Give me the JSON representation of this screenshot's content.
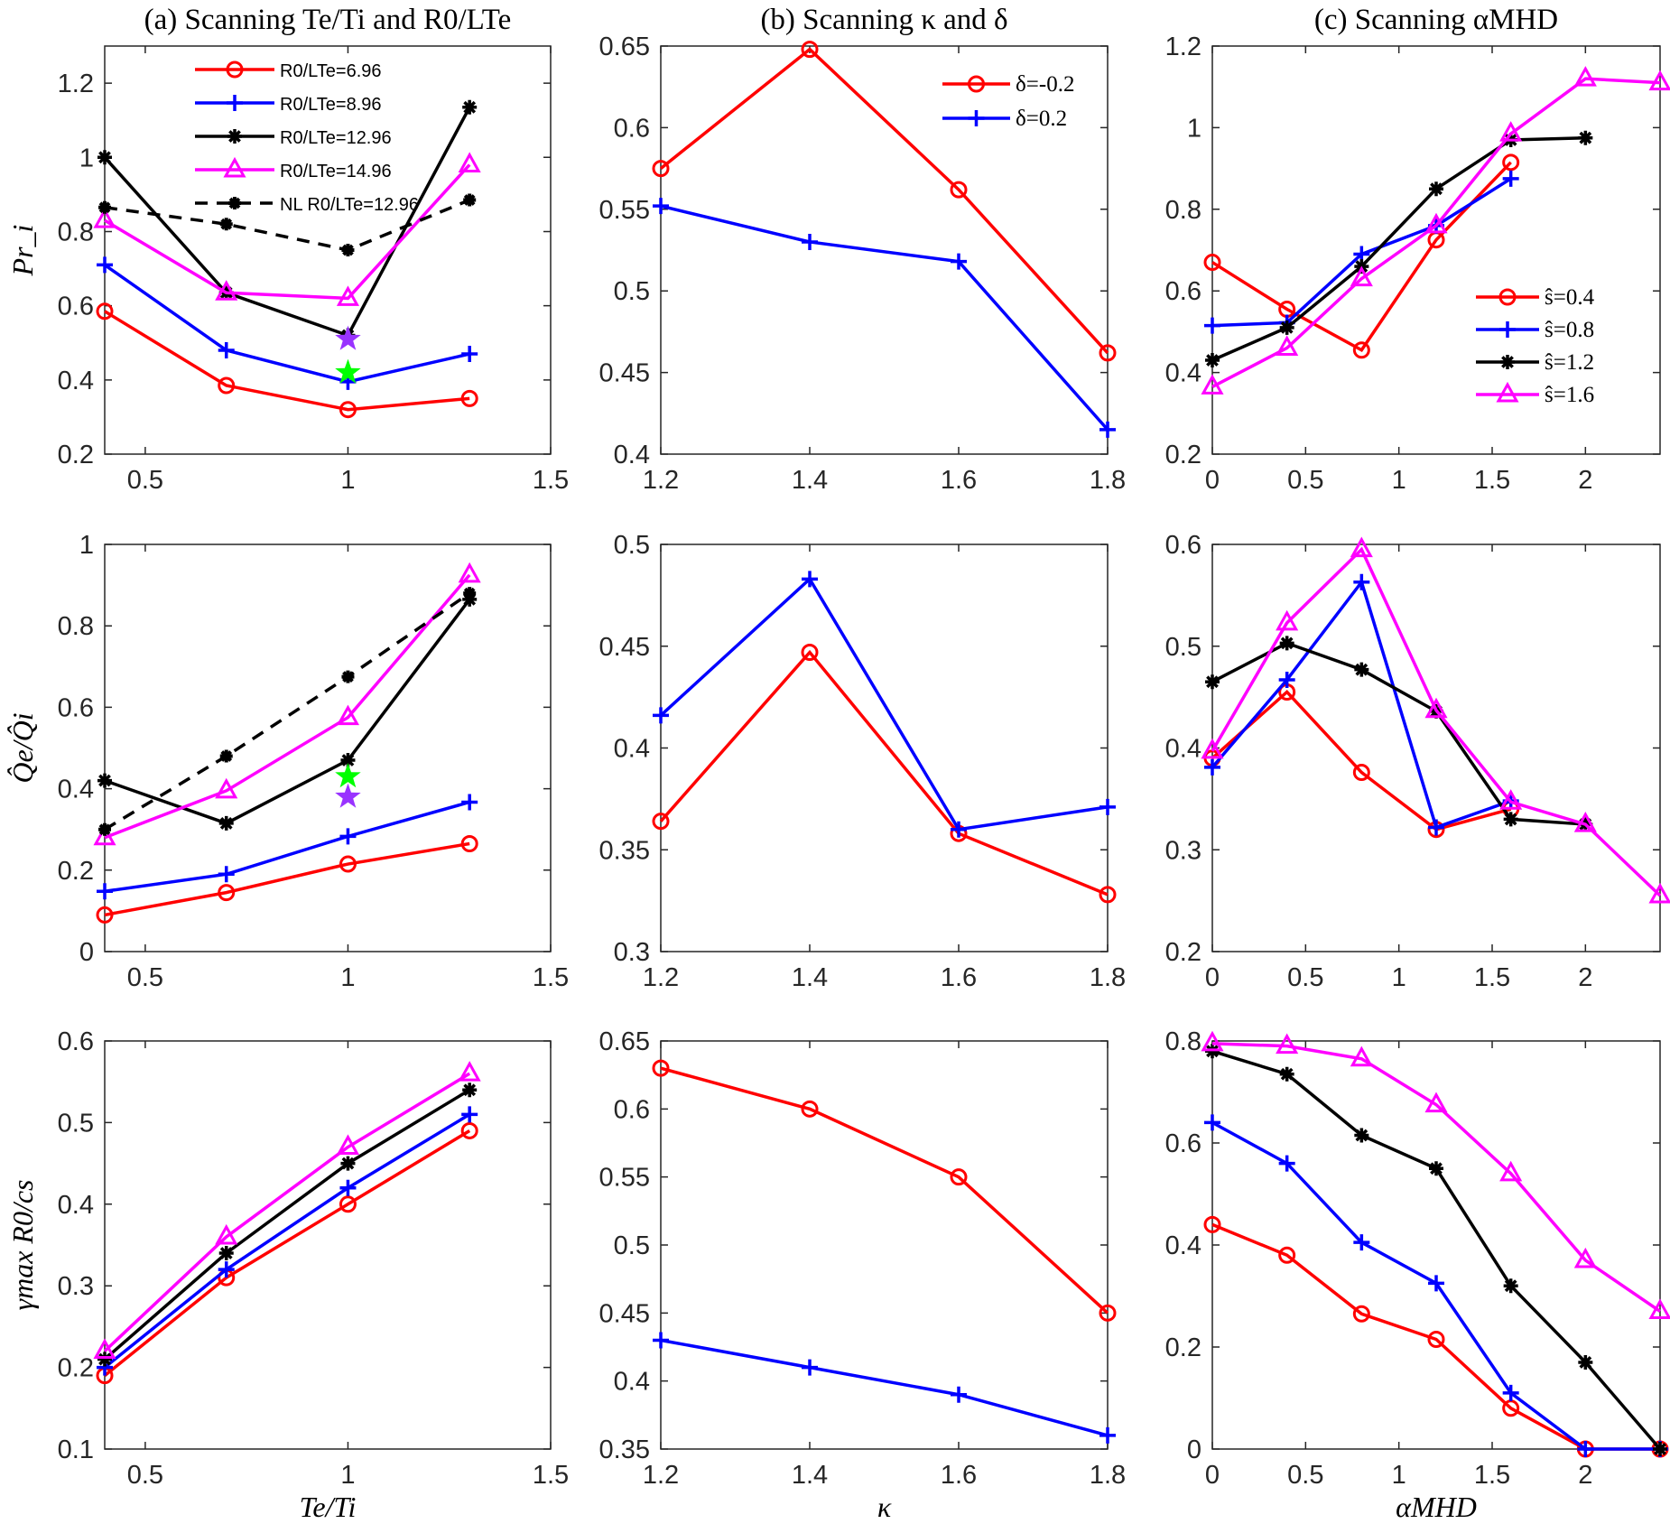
{
  "colors": {
    "red": "#ff0000",
    "blue": "#0000ff",
    "black": "#000000",
    "magenta": "#ff00ff",
    "purple_star": "#9933ff",
    "green_star": "#00ff00"
  },
  "chart_data": [
    {
      "id": "a1",
      "type": "line",
      "title": "(a) Scanning Te/Ti and R0/LTe",
      "ylabel": "Pr_i",
      "xlabel": "",
      "xlim": [
        0.4,
        1.5
      ],
      "ylim": [
        0.2,
        1.3
      ],
      "xticks": [
        0.5,
        1,
        1.5
      ],
      "yticks": [
        0.2,
        0.4,
        0.6,
        0.8,
        1,
        1.2
      ],
      "legend": "top-center",
      "series": [
        {
          "name": "R0/LTe=6.96",
          "color": "red",
          "marker": "circle",
          "x": [
            0.4,
            0.7,
            1.0,
            1.3
          ],
          "y": [
            0.585,
            0.385,
            0.32,
            0.35
          ]
        },
        {
          "name": "R0/LTe=8.96",
          "color": "blue",
          "marker": "plus",
          "x": [
            0.4,
            0.7,
            1.0,
            1.3
          ],
          "y": [
            0.71,
            0.48,
            0.395,
            0.47
          ]
        },
        {
          "name": "R0/LTe=12.96",
          "color": "black",
          "marker": "asterisk",
          "x": [
            0.4,
            0.7,
            1.0,
            1.3
          ],
          "y": [
            1.0,
            0.635,
            0.52,
            1.135
          ]
        },
        {
          "name": "R0/LTe=14.96",
          "color": "magenta",
          "marker": "triangle",
          "x": [
            0.4,
            0.7,
            1.0,
            1.3
          ],
          "y": [
            0.83,
            0.635,
            0.62,
            0.98
          ]
        },
        {
          "name": "NL R0/LTe=12.96",
          "color": "black",
          "marker": "dot",
          "dashed": true,
          "x": [
            0.4,
            0.7,
            1.0,
            1.3
          ],
          "y": [
            0.865,
            0.82,
            0.75,
            0.885
          ]
        }
      ],
      "stars": [
        {
          "x": 1.0,
          "y": 0.51,
          "color": "purple_star"
        },
        {
          "x": 1.0,
          "y": 0.42,
          "color": "green_star"
        }
      ]
    },
    {
      "id": "b1",
      "type": "line",
      "title": "(b) Scanning κ and δ",
      "xlabel": "",
      "ylabel": "",
      "xlim": [
        1.2,
        1.8
      ],
      "ylim": [
        0.4,
        0.65
      ],
      "xticks": [
        1.2,
        1.4,
        1.6,
        1.8
      ],
      "yticks": [
        0.4,
        0.45,
        0.5,
        0.55,
        0.6,
        0.65
      ],
      "legend": "top-right",
      "series": [
        {
          "name": "δ=-0.2",
          "color": "red",
          "marker": "circle",
          "x": [
            1.2,
            1.4,
            1.6,
            1.8
          ],
          "y": [
            0.575,
            0.648,
            0.562,
            0.462
          ]
        },
        {
          "name": "δ=0.2",
          "color": "blue",
          "marker": "plus",
          "x": [
            1.2,
            1.4,
            1.6,
            1.8
          ],
          "y": [
            0.552,
            0.53,
            0.518,
            0.415
          ]
        }
      ]
    },
    {
      "id": "c1",
      "type": "line",
      "title": "(c) Scanning αMHD",
      "xlabel": "",
      "ylabel": "",
      "xlim": [
        0,
        2.4
      ],
      "ylim": [
        0.2,
        1.2
      ],
      "xticks": [
        0,
        0.5,
        1,
        1.5,
        2
      ],
      "yticks": [
        0.2,
        0.4,
        0.6,
        0.8,
        1,
        1.2
      ],
      "legend": "right",
      "series": [
        {
          "name": "ŝ=0.4",
          "color": "red",
          "marker": "circle",
          "x": [
            0,
            0.4,
            0.8,
            1.2,
            1.6
          ],
          "y": [
            0.67,
            0.555,
            0.455,
            0.725,
            0.915
          ]
        },
        {
          "name": "ŝ=0.8",
          "color": "blue",
          "marker": "plus",
          "x": [
            0,
            0.4,
            0.8,
            1.2,
            1.6
          ],
          "y": [
            0.515,
            0.522,
            0.69,
            0.76,
            0.875
          ]
        },
        {
          "name": "ŝ=1.2",
          "color": "black",
          "marker": "asterisk",
          "x": [
            0,
            0.4,
            0.8,
            1.2,
            1.6,
            2.0
          ],
          "y": [
            0.43,
            0.51,
            0.66,
            0.85,
            0.97,
            0.975
          ]
        },
        {
          "name": "ŝ=1.6",
          "color": "magenta",
          "marker": "triangle",
          "x": [
            0,
            0.4,
            0.8,
            1.2,
            1.6,
            2.0,
            2.4
          ],
          "y": [
            0.365,
            0.46,
            0.63,
            0.76,
            0.985,
            1.12,
            1.11
          ]
        }
      ]
    },
    {
      "id": "a2",
      "type": "line",
      "title": "",
      "ylabel": "Q̂e/Q̂i",
      "xlabel": "",
      "xlim": [
        0.4,
        1.5
      ],
      "ylim": [
        0,
        1
      ],
      "xticks": [
        0.5,
        1,
        1.5
      ],
      "yticks": [
        0,
        0.2,
        0.4,
        0.6,
        0.8,
        1
      ],
      "series": [
        {
          "color": "red",
          "marker": "circle",
          "x": [
            0.4,
            0.7,
            1.0,
            1.3
          ],
          "y": [
            0.09,
            0.145,
            0.215,
            0.265
          ]
        },
        {
          "color": "blue",
          "marker": "plus",
          "x": [
            0.4,
            0.7,
            1.0,
            1.3
          ],
          "y": [
            0.148,
            0.19,
            0.283,
            0.367
          ]
        },
        {
          "color": "black",
          "marker": "asterisk",
          "x": [
            0.4,
            0.7,
            1.0,
            1.3
          ],
          "y": [
            0.42,
            0.315,
            0.47,
            0.865
          ]
        },
        {
          "color": "magenta",
          "marker": "triangle",
          "x": [
            0.4,
            0.7,
            1.0,
            1.3
          ],
          "y": [
            0.28,
            0.395,
            0.575,
            0.925
          ]
        },
        {
          "color": "black",
          "marker": "dot",
          "dashed": true,
          "x": [
            0.4,
            0.7,
            1.0,
            1.3
          ],
          "y": [
            0.3,
            0.48,
            0.675,
            0.88
          ]
        }
      ],
      "stars": [
        {
          "x": 1.0,
          "y": 0.43,
          "color": "green_star"
        },
        {
          "x": 1.0,
          "y": 0.38,
          "color": "purple_star"
        }
      ]
    },
    {
      "id": "b2",
      "type": "line",
      "title": "",
      "xlabel": "",
      "ylabel": "",
      "xlim": [
        1.2,
        1.8
      ],
      "ylim": [
        0.3,
        0.5
      ],
      "xticks": [
        1.2,
        1.4,
        1.6,
        1.8
      ],
      "yticks": [
        0.3,
        0.35,
        0.4,
        0.45,
        0.5
      ],
      "series": [
        {
          "color": "red",
          "marker": "circle",
          "x": [
            1.2,
            1.4,
            1.6,
            1.8
          ],
          "y": [
            0.364,
            0.447,
            0.358,
            0.328
          ]
        },
        {
          "color": "blue",
          "marker": "plus",
          "x": [
            1.2,
            1.4,
            1.6,
            1.8
          ],
          "y": [
            0.416,
            0.483,
            0.36,
            0.371
          ]
        }
      ]
    },
    {
      "id": "c2",
      "type": "line",
      "title": "",
      "xlabel": "",
      "ylabel": "",
      "xlim": [
        0,
        2.4
      ],
      "ylim": [
        0.2,
        0.6
      ],
      "xticks": [
        0,
        0.5,
        1,
        1.5,
        2
      ],
      "yticks": [
        0.2,
        0.3,
        0.4,
        0.5,
        0.6
      ],
      "series": [
        {
          "color": "red",
          "marker": "circle",
          "x": [
            0,
            0.4,
            0.8,
            1.2,
            1.6
          ],
          "y": [
            0.39,
            0.455,
            0.376,
            0.32,
            0.34
          ]
        },
        {
          "color": "blue",
          "marker": "plus",
          "x": [
            0,
            0.4,
            0.8,
            1.2,
            1.6
          ],
          "y": [
            0.381,
            0.467,
            0.563,
            0.322,
            0.348
          ]
        },
        {
          "color": "black",
          "marker": "asterisk",
          "x": [
            0,
            0.4,
            0.8,
            1.2,
            1.6,
            2.0
          ],
          "y": [
            0.465,
            0.503,
            0.477,
            0.436,
            0.33,
            0.325
          ]
        },
        {
          "color": "magenta",
          "marker": "triangle",
          "x": [
            0,
            0.4,
            0.8,
            1.2,
            1.6,
            2.0,
            2.4
          ],
          "y": [
            0.397,
            0.523,
            0.595,
            0.437,
            0.347,
            0.325,
            0.255
          ]
        }
      ]
    },
    {
      "id": "a3",
      "type": "line",
      "title": "",
      "ylabel": "γmax R0/cs",
      "xlabel": "Te/Ti",
      "xlim": [
        0.4,
        1.5
      ],
      "ylim": [
        0.1,
        0.6
      ],
      "xticks": [
        0.5,
        1,
        1.5
      ],
      "yticks": [
        0.1,
        0.2,
        0.3,
        0.4,
        0.5,
        0.6
      ],
      "series": [
        {
          "color": "red",
          "marker": "circle",
          "x": [
            0.4,
            0.7,
            1.0,
            1.3
          ],
          "y": [
            0.19,
            0.31,
            0.4,
            0.49
          ]
        },
        {
          "color": "blue",
          "marker": "plus",
          "x": [
            0.4,
            0.7,
            1.0,
            1.3
          ],
          "y": [
            0.2,
            0.32,
            0.42,
            0.51
          ]
        },
        {
          "color": "black",
          "marker": "asterisk",
          "x": [
            0.4,
            0.7,
            1.0,
            1.3
          ],
          "y": [
            0.21,
            0.34,
            0.45,
            0.54
          ]
        },
        {
          "color": "magenta",
          "marker": "triangle",
          "x": [
            0.4,
            0.7,
            1.0,
            1.3
          ],
          "y": [
            0.22,
            0.36,
            0.47,
            0.56
          ]
        }
      ]
    },
    {
      "id": "b3",
      "type": "line",
      "title": "",
      "xlabel": "κ",
      "ylabel": "",
      "xlim": [
        1.2,
        1.8
      ],
      "ylim": [
        0.35,
        0.65
      ],
      "xticks": [
        1.2,
        1.4,
        1.6,
        1.8
      ],
      "yticks": [
        0.35,
        0.4,
        0.45,
        0.5,
        0.55,
        0.6,
        0.65
      ],
      "series": [
        {
          "color": "red",
          "marker": "circle",
          "x": [
            1.2,
            1.4,
            1.6,
            1.8
          ],
          "y": [
            0.63,
            0.6,
            0.55,
            0.45
          ]
        },
        {
          "color": "blue",
          "marker": "plus",
          "x": [
            1.2,
            1.4,
            1.6,
            1.8
          ],
          "y": [
            0.43,
            0.41,
            0.39,
            0.36
          ]
        }
      ]
    },
    {
      "id": "c3",
      "type": "line",
      "title": "",
      "xlabel": "αMHD",
      "ylabel": "",
      "xlim": [
        0,
        2.4
      ],
      "ylim": [
        0,
        0.8
      ],
      "xticks": [
        0,
        0.5,
        1,
        1.5,
        2
      ],
      "yticks": [
        0,
        0.2,
        0.4,
        0.6,
        0.8
      ],
      "series": [
        {
          "color": "red",
          "marker": "circle",
          "x": [
            0,
            0.4,
            0.8,
            1.2,
            1.6,
            2.0,
            2.4
          ],
          "y": [
            0.44,
            0.38,
            0.265,
            0.215,
            0.08,
            0,
            0
          ]
        },
        {
          "color": "blue",
          "marker": "plus",
          "x": [
            0,
            0.4,
            0.8,
            1.2,
            1.6,
            2.0,
            2.4
          ],
          "y": [
            0.64,
            0.56,
            0.405,
            0.325,
            0.11,
            0,
            0
          ]
        },
        {
          "color": "black",
          "marker": "asterisk",
          "x": [
            0,
            0.4,
            0.8,
            1.2,
            1.6,
            2.0,
            2.4
          ],
          "y": [
            0.78,
            0.735,
            0.615,
            0.55,
            0.32,
            0.17,
            0
          ]
        },
        {
          "color": "magenta",
          "marker": "triangle",
          "x": [
            0,
            0.4,
            0.8,
            1.2,
            1.6,
            2.0,
            2.4
          ],
          "y": [
            0.795,
            0.79,
            0.765,
            0.675,
            0.54,
            0.37,
            0.27
          ]
        }
      ]
    }
  ]
}
